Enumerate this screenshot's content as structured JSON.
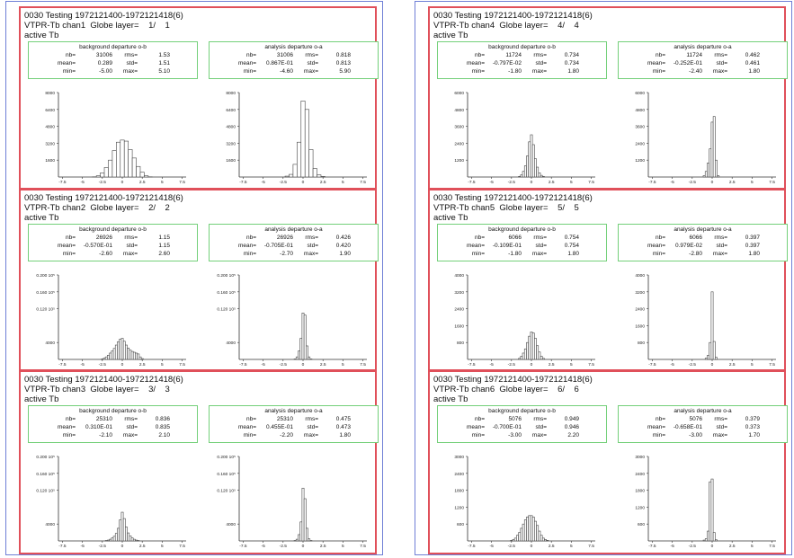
{
  "pages": [
    {
      "panels": [
        {
          "title": "0030 Testing 1972121400-1972121418(6)",
          "chan_line": "VTPR-Tb chan1  Globe layer=    1/    1",
          "var": "active Tb",
          "bg": {
            "title": "background departure o-b",
            "nb": "31006",
            "rms": "1.53",
            "mean": "0.289",
            "std": "1.51",
            "min": "-5.00",
            "max": "5.10"
          },
          "an": {
            "title": "analysis departure o-a",
            "nb": "31006",
            "rms": "0.818",
            "mean": "0.867E-01",
            "std": "0.813",
            "min": "-4.60",
            "max": "5.90"
          }
        },
        {
          "title": "0030 Testing 1972121400-1972121418(6)",
          "chan_line": "VTPR-Tb chan2  Globe layer=    2/    2",
          "var": "active Tb",
          "bg": {
            "title": "background departure o-b",
            "nb": "26926",
            "rms": "1.15",
            "mean": "-0.570E-01",
            "std": "1.15",
            "min": "-2.60",
            "max": "2.60"
          },
          "an": {
            "title": "analysis departure o-a",
            "nb": "26926",
            "rms": "0.426",
            "mean": "-0.705E-01",
            "std": "0.420",
            "min": "-2.70",
            "max": "1.90"
          }
        },
        {
          "title": "0030 Testing 1972121400-1972121418(6)",
          "chan_line": "VTPR-Tb chan3  Globe layer=    3/    3",
          "var": "active Tb",
          "bg": {
            "title": "background departure o-b",
            "nb": "25310",
            "rms": "0.836",
            "mean": "0.310E-01",
            "std": "0.835",
            "min": "-2.10",
            "max": "2.10"
          },
          "an": {
            "title": "analysis departure o-a",
            "nb": "25310",
            "rms": "0.475",
            "mean": "0.455E-01",
            "std": "0.473",
            "min": "-2.20",
            "max": "1.80"
          }
        }
      ]
    },
    {
      "panels": [
        {
          "title": "0030 Testing 1972121400-1972121418(6)",
          "chan_line": "VTPR-Tb chan4  Globe layer=    4/    4",
          "var": "active Tb",
          "bg": {
            "title": "background departure o-b",
            "nb": "11724",
            "rms": "0.734",
            "mean": "-0.797E-02",
            "std": "0.734",
            "min": "-1.80",
            "max": "1.80"
          },
          "an": {
            "title": "analysis departure o-a",
            "nb": "11724",
            "rms": "0.462",
            "mean": "-0.252E-01",
            "std": "0.461",
            "min": "-2.40",
            "max": "1.80"
          }
        },
        {
          "title": "0030 Testing 1972121400-1972121418(6)",
          "chan_line": "VTPR-Tb chan5  Globe layer=    5/    5",
          "var": "active Tb",
          "bg": {
            "title": "background departure o-b",
            "nb": "6066",
            "rms": "0.754",
            "mean": "-0.109E-01",
            "std": "0.754",
            "min": "-1.80",
            "max": "1.80"
          },
          "an": {
            "title": "analysis departure o-a",
            "nb": "6066",
            "rms": "0.397",
            "mean": "0.979E-02",
            "std": "0.397",
            "min": "-2.80",
            "max": "1.80"
          }
        },
        {
          "title": "0030 Testing 1972121400-1972121418(6)",
          "chan_line": "VTPR-Tb chan6  Globe layer=    6/    6",
          "var": "active Tb",
          "bg": {
            "title": "background departure o-b",
            "nb": "5076",
            "rms": "0.949",
            "mean": "-0.700E-01",
            "std": "0.946",
            "min": "-3.00",
            "max": "2.20"
          },
          "an": {
            "title": "analysis departure o-a",
            "nb": "5076",
            "rms": "0.379",
            "mean": "-0.658E-01",
            "std": "0.373",
            "min": "-3.00",
            "max": "1.70"
          }
        }
      ]
    }
  ],
  "stat_labels": {
    "nb": "nb=",
    "rms": "rms=",
    "mean": "mean=",
    "std": "std=",
    "min": "min=",
    "max": "max="
  },
  "chart_data": [
    {
      "type": "bar",
      "id": "p0-0-bg",
      "bin_width": 0.5,
      "x": [
        -3.5,
        -3,
        -2.5,
        -2,
        -1.5,
        -1,
        -0.5,
        0,
        0.5,
        1,
        1.5,
        2,
        2.5,
        3,
        3.5
      ],
      "values": [
        20,
        120,
        400,
        900,
        1600,
        2500,
        3300,
        3500,
        3400,
        2600,
        1800,
        1000,
        450,
        120,
        20
      ],
      "xlim": [
        -8,
        8
      ],
      "ylim": [
        0,
        8000
      ],
      "yticks": [
        "1600",
        "3200",
        "4800",
        "6400",
        "8000"
      ],
      "xticks": [
        "-7.5",
        "-5",
        "-2.5",
        "0",
        "2.5",
        "5",
        "7.5"
      ]
    },
    {
      "type": "bar",
      "id": "p0-0-an",
      "bin_width": 0.5,
      "x": [
        -2,
        -1.5,
        -1,
        -0.5,
        0,
        0.5,
        1,
        1.5,
        2,
        2.5
      ],
      "values": [
        80,
        250,
        1200,
        3300,
        7200,
        6400,
        2600,
        800,
        200,
        50
      ],
      "xlim": [
        -8,
        8
      ],
      "ylim": [
        0,
        8000
      ],
      "yticks": [
        "1600",
        "3200",
        "4800",
        "6400",
        "8000"
      ],
      "xticks": [
        "-7.5",
        "-5",
        "-2.5",
        "0",
        "2.5",
        "5",
        "7.5"
      ]
    },
    {
      "type": "bar",
      "id": "p0-1-bg",
      "bin_width": 0.25,
      "x": [
        -2.5,
        -2.25,
        -2,
        -1.75,
        -1.5,
        -1.25,
        -1,
        -0.75,
        -0.5,
        -0.25,
        0,
        0.25,
        0.5,
        0.75,
        1,
        1.25,
        1.5,
        1.75,
        2,
        2.25,
        2.5
      ],
      "values": [
        100,
        300,
        600,
        1000,
        1500,
        2000,
        2600,
        3400,
        4200,
        4800,
        5000,
        4300,
        3400,
        2700,
        2200,
        1900,
        1700,
        1500,
        1300,
        600,
        200
      ],
      "xlim": [
        -8,
        8
      ],
      "ylim": [
        0,
        20000
      ],
      "yticks": [
        "4000",
        "0.120 10⁵",
        "0.160 10⁵",
        "0.200 10⁵"
      ],
      "yticks_at": [
        4000,
        12000,
        16000,
        20000
      ],
      "xticks": [
        "-7.5",
        "-5",
        "-2.5",
        "0",
        "2.5",
        "5",
        "7.5"
      ]
    },
    {
      "type": "bar",
      "id": "p0-1-an",
      "bin_width": 0.25,
      "x": [
        -1,
        -0.75,
        -0.5,
        -0.25,
        0,
        0.25,
        0.5,
        0.75,
        1
      ],
      "values": [
        100,
        600,
        2000,
        5000,
        11000,
        10500,
        3200,
        600,
        100
      ],
      "xlim": [
        -8,
        8
      ],
      "ylim": [
        0,
        20000
      ],
      "yticks": [
        "4000",
        "0.120 10⁵",
        "0.160 10⁵",
        "0.200 10⁵"
      ],
      "yticks_at": [
        4000,
        12000,
        16000,
        20000
      ],
      "xticks": [
        "-7.5",
        "-5",
        "-2.5",
        "0",
        "2.5",
        "5",
        "7.5"
      ]
    },
    {
      "type": "bar",
      "id": "p0-2-bg",
      "bin_width": 0.25,
      "x": [
        -2,
        -1.75,
        -1.5,
        -1.25,
        -1,
        -0.75,
        -0.5,
        -0.25,
        0,
        0.25,
        0.5,
        0.75,
        1,
        1.25,
        1.5,
        1.75,
        2
      ],
      "values": [
        100,
        200,
        400,
        700,
        1100,
        1800,
        3000,
        5000,
        6800,
        5300,
        3300,
        1900,
        1200,
        700,
        400,
        200,
        100
      ],
      "xlim": [
        -8,
        8
      ],
      "ylim": [
        0,
        20000
      ],
      "yticks": [
        "4000",
        "0.120 10⁵",
        "0.160 10⁵",
        "0.200 10⁵"
      ],
      "yticks_at": [
        4000,
        12000,
        16000,
        20000
      ],
      "xticks": [
        "-7.5",
        "-5",
        "-2.5",
        "0",
        "2.5",
        "5",
        "7.5"
      ]
    },
    {
      "type": "bar",
      "id": "p0-2-an",
      "bin_width": 0.25,
      "x": [
        -1,
        -0.75,
        -0.5,
        -0.25,
        0,
        0.25,
        0.5,
        0.75,
        1
      ],
      "values": [
        100,
        400,
        1500,
        4500,
        12500,
        10000,
        3000,
        500,
        100
      ],
      "xlim": [
        -8,
        8
      ],
      "ylim": [
        0,
        20000
      ],
      "yticks": [
        "4000",
        "0.120 10⁵",
        "0.160 10⁵",
        "0.200 10⁵"
      ],
      "yticks_at": [
        4000,
        12000,
        16000,
        20000
      ],
      "xticks": [
        "-7.5",
        "-5",
        "-2.5",
        "0",
        "2.5",
        "5",
        "7.5"
      ]
    },
    {
      "type": "bar",
      "id": "p1-0-bg",
      "bin_width": 0.25,
      "x": [
        -1.5,
        -1.25,
        -1,
        -0.75,
        -0.5,
        -0.25,
        0,
        0.25,
        0.5,
        0.75,
        1,
        1.25,
        1.5
      ],
      "values": [
        40,
        150,
        400,
        800,
        1500,
        2500,
        3000,
        2300,
        1300,
        700,
        300,
        120,
        40
      ],
      "xlim": [
        -8,
        8
      ],
      "ylim": [
        0,
        6000
      ],
      "yticks": [
        "1200",
        "2400",
        "3600",
        "4800",
        "6000"
      ],
      "xticks": [
        "-7.5",
        "-5",
        "-2.5",
        "0",
        "2.5",
        "5",
        "7.5"
      ]
    },
    {
      "type": "bar",
      "id": "p1-0-an",
      "bin_width": 0.25,
      "x": [
        -1,
        -0.75,
        -0.5,
        -0.25,
        0,
        0.25,
        0.5,
        0.75
      ],
      "values": [
        100,
        400,
        1000,
        2000,
        3900,
        4300,
        1200,
        100
      ],
      "xlim": [
        -8,
        8
      ],
      "ylim": [
        0,
        6000
      ],
      "yticks": [
        "1200",
        "2400",
        "3600",
        "4800",
        "6000"
      ],
      "xticks": [
        "-7.5",
        "-5",
        "-2.5",
        "0",
        "2.5",
        "5",
        "7.5"
      ]
    },
    {
      "type": "bar",
      "id": "p1-1-bg",
      "bin_width": 0.25,
      "x": [
        -1.5,
        -1.25,
        -1,
        -0.75,
        -0.5,
        -0.25,
        0,
        0.25,
        0.5,
        0.75,
        1,
        1.25,
        1.5
      ],
      "values": [
        50,
        150,
        300,
        500,
        800,
        1100,
        1300,
        1250,
        1000,
        650,
        350,
        150,
        50
      ],
      "xlim": [
        -8,
        8
      ],
      "ylim": [
        0,
        4000
      ],
      "yticks": [
        "800",
        "1600",
        "2400",
        "3200",
        "4000"
      ],
      "xticks": [
        "-7.5",
        "-5",
        "-2.5",
        "0",
        "2.5",
        "5",
        "7.5"
      ]
    },
    {
      "type": "bar",
      "id": "p1-1-an",
      "bin_width": 0.25,
      "x": [
        -0.75,
        -0.5,
        -0.25,
        0,
        0.25,
        0.5
      ],
      "values": [
        60,
        200,
        800,
        3200,
        850,
        100
      ],
      "xlim": [
        -8,
        8
      ],
      "ylim": [
        0,
        4000
      ],
      "yticks": [
        "800",
        "1600",
        "2400",
        "3200",
        "4000"
      ],
      "xticks": [
        "-7.5",
        "-5",
        "-2.5",
        "0",
        "2.5",
        "5",
        "7.5"
      ]
    },
    {
      "type": "bar",
      "id": "p1-2-bg",
      "bin_width": 0.25,
      "x": [
        -2.5,
        -2.25,
        -2,
        -1.75,
        -1.5,
        -1.25,
        -1,
        -0.75,
        -0.5,
        -0.25,
        0,
        0.25,
        0.5,
        0.75,
        1,
        1.25,
        1.5,
        1.75,
        2
      ],
      "values": [
        20,
        50,
        100,
        200,
        300,
        450,
        600,
        750,
        850,
        900,
        900,
        850,
        700,
        550,
        350,
        200,
        100,
        50,
        20
      ],
      "xlim": [
        -8,
        8
      ],
      "ylim": [
        0,
        3000
      ],
      "yticks": [
        "600",
        "1200",
        "1800",
        "2400",
        "3000"
      ],
      "xticks": [
        "-7.5",
        "-5",
        "-2.5",
        "0",
        "2.5",
        "5",
        "7.5"
      ]
    },
    {
      "type": "bar",
      "id": "p1-2-an",
      "bin_width": 0.25,
      "x": [
        -1,
        -0.75,
        -0.5,
        -0.25,
        0,
        0.25,
        0.5
      ],
      "values": [
        30,
        80,
        350,
        2100,
        2200,
        300,
        40
      ],
      "xlim": [
        -8,
        8
      ],
      "ylim": [
        0,
        3000
      ],
      "yticks": [
        "600",
        "1200",
        "1800",
        "2400",
        "3000"
      ],
      "xticks": [
        "-7.5",
        "-5",
        "-2.5",
        "0",
        "2.5",
        "5",
        "7.5"
      ]
    }
  ]
}
